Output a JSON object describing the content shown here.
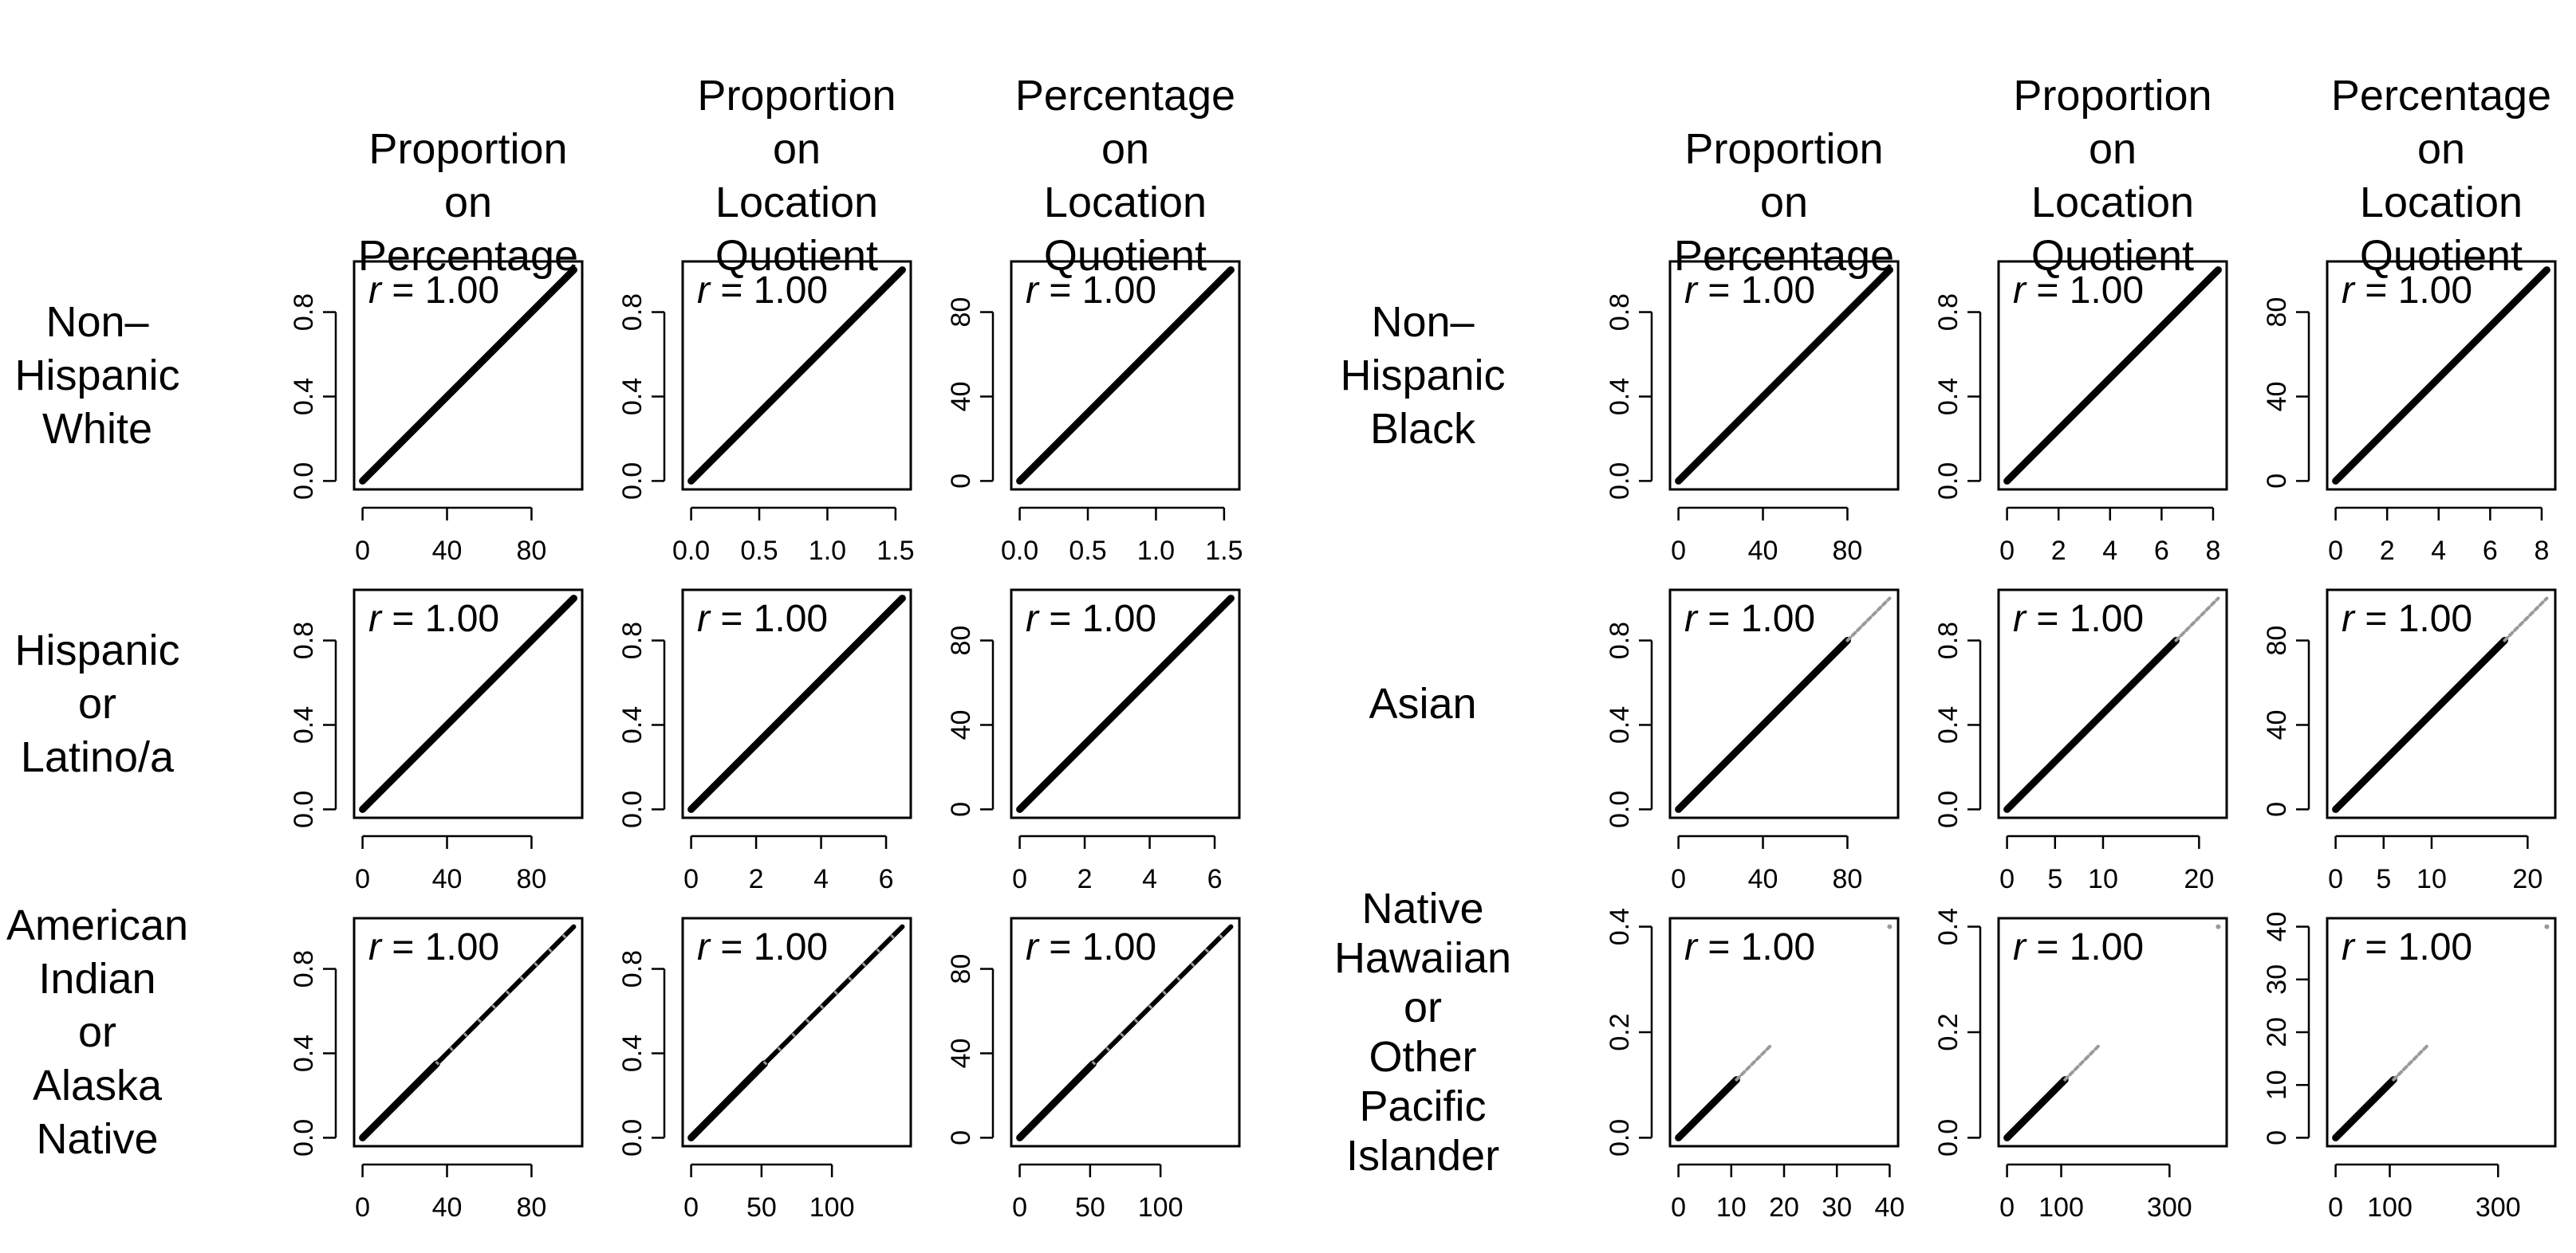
{
  "figure": {
    "panel_groups": [
      {
        "column_titles": [
          [
            "Proportion",
            "on",
            "Percentage"
          ],
          [
            "Proportion",
            "on",
            "Location",
            "Quotient"
          ],
          [
            "Percentage",
            "on",
            "Location",
            "Quotient"
          ]
        ],
        "rows": [
          {
            "label": [
              "Non–",
              "Hispanic",
              "White"
            ]
          },
          {
            "label": [
              "Hispanic",
              "or",
              "Latino/a"
            ]
          },
          {
            "label": [
              "American",
              "Indian",
              "or",
              "Alaska",
              "Native"
            ]
          }
        ]
      },
      {
        "column_titles": [
          [
            "Proportion",
            "on",
            "Percentage"
          ],
          [
            "Proportion",
            "on",
            "Location",
            "Quotient"
          ],
          [
            "Percentage",
            "on",
            "Location",
            "Quotient"
          ]
        ],
        "rows": [
          {
            "label": [
              "Non–",
              "Hispanic",
              "Black"
            ]
          },
          {
            "label": [
              "Asian"
            ]
          },
          {
            "label": [
              "Native",
              "Hawaiian",
              "or",
              "Other",
              "Pacific",
              "Islander"
            ]
          }
        ]
      }
    ]
  },
  "colors": {
    "line": "#000000",
    "sparse_points": "#9a9a9a",
    "background": "#ffffff"
  },
  "chart_data": [
    {
      "type": "scatter",
      "group": 0,
      "row": 0,
      "col": 0,
      "annotation": "r = 1.00",
      "r_value": "1.00",
      "xlim": [
        0,
        100
      ],
      "ylim": [
        0,
        1
      ],
      "xticks": [
        0,
        40,
        80
      ],
      "xticklabels": [
        "0",
        "40",
        "80"
      ],
      "yticks": [
        0,
        0.4,
        0.8
      ],
      "yticklabels": [
        "0.0",
        "0.4",
        "0.8"
      ],
      "dense_segment": {
        "x": [
          0,
          100
        ],
        "y": [
          0,
          1
        ]
      },
      "sparse_segment": null
    },
    {
      "type": "scatter",
      "group": 0,
      "row": 0,
      "col": 1,
      "annotation": "r = 1.00",
      "r_value": "1.00",
      "xlim": [
        0,
        1.55
      ],
      "ylim": [
        0,
        1
      ],
      "xticks": [
        0,
        0.5,
        1.0,
        1.5
      ],
      "xticklabels": [
        "0.0",
        "0.5",
        "1.0",
        "1.5"
      ],
      "yticks": [
        0,
        0.4,
        0.8
      ],
      "yticklabels": [
        "0.0",
        "0.4",
        "0.8"
      ],
      "dense_segment": {
        "x": [
          0,
          1.55
        ],
        "y": [
          0,
          1
        ]
      },
      "sparse_segment": null
    },
    {
      "type": "scatter",
      "group": 0,
      "row": 0,
      "col": 2,
      "annotation": "r = 1.00",
      "r_value": "1.00",
      "xlim": [
        0,
        1.55
      ],
      "ylim": [
        0,
        100
      ],
      "xticks": [
        0,
        0.5,
        1.0,
        1.5
      ],
      "xticklabels": [
        "0.0",
        "0.5",
        "1.0",
        "1.5"
      ],
      "yticks": [
        0,
        40,
        80
      ],
      "yticklabels": [
        "0",
        "40",
        "80"
      ],
      "dense_segment": {
        "x": [
          0,
          1.55
        ],
        "y": [
          0,
          100
        ]
      },
      "sparse_segment": null
    },
    {
      "type": "scatter",
      "group": 0,
      "row": 1,
      "col": 0,
      "annotation": "r = 1.00",
      "r_value": "1.00",
      "xlim": [
        0,
        100
      ],
      "ylim": [
        0,
        1
      ],
      "xticks": [
        0,
        40,
        80
      ],
      "xticklabels": [
        "0",
        "40",
        "80"
      ],
      "yticks": [
        0,
        0.4,
        0.8
      ],
      "yticklabels": [
        "0.0",
        "0.4",
        "0.8"
      ],
      "dense_segment": {
        "x": [
          0,
          100
        ],
        "y": [
          0,
          1
        ]
      },
      "sparse_segment": null
    },
    {
      "type": "scatter",
      "group": 0,
      "row": 1,
      "col": 1,
      "annotation": "r = 1.00",
      "r_value": "1.00",
      "xlim": [
        0,
        6.5
      ],
      "ylim": [
        0,
        1
      ],
      "xticks": [
        0,
        2,
        4,
        6
      ],
      "xticklabels": [
        "0",
        "2",
        "4",
        "6"
      ],
      "yticks": [
        0,
        0.4,
        0.8
      ],
      "yticklabels": [
        "0.0",
        "0.4",
        "0.8"
      ],
      "dense_segment": {
        "x": [
          0,
          6.5
        ],
        "y": [
          0,
          1
        ]
      },
      "sparse_segment": null
    },
    {
      "type": "scatter",
      "group": 0,
      "row": 1,
      "col": 2,
      "annotation": "r = 1.00",
      "r_value": "1.00",
      "xlim": [
        0,
        6.5
      ],
      "ylim": [
        0,
        100
      ],
      "xticks": [
        0,
        2,
        4,
        6
      ],
      "xticklabels": [
        "0",
        "2",
        "4",
        "6"
      ],
      "yticks": [
        0,
        40,
        80
      ],
      "yticklabels": [
        "0",
        "40",
        "80"
      ],
      "dense_segment": {
        "x": [
          0,
          6.5
        ],
        "y": [
          0,
          100
        ]
      },
      "sparse_segment": null
    },
    {
      "type": "scatter",
      "group": 0,
      "row": 2,
      "col": 0,
      "annotation": "r = 1.00",
      "r_value": "1.00",
      "xlim": [
        0,
        100
      ],
      "ylim": [
        0,
        1
      ],
      "xticks": [
        0,
        40,
        80
      ],
      "xticklabels": [
        "0",
        "40",
        "80"
      ],
      "yticks": [
        0,
        0.4,
        0.8
      ],
      "yticklabels": [
        "0.0",
        "0.4",
        "0.8"
      ],
      "dense_segment": {
        "x": [
          0,
          35
        ],
        "y": [
          0,
          0.35
        ]
      },
      "sparse_segment": {
        "x": [
          35,
          100
        ],
        "y": [
          0.35,
          1
        ],
        "mixed": true
      }
    },
    {
      "type": "scatter",
      "group": 0,
      "row": 2,
      "col": 1,
      "annotation": "r = 1.00",
      "r_value": "1.00",
      "xlim": [
        0,
        150
      ],
      "ylim": [
        0,
        1
      ],
      "xticks": [
        0,
        50,
        100
      ],
      "xticklabels": [
        "0",
        "50",
        "100"
      ],
      "yticks": [
        0,
        0.4,
        0.8
      ],
      "yticklabels": [
        "0.0",
        "0.4",
        "0.8"
      ],
      "dense_segment": {
        "x": [
          0,
          52
        ],
        "y": [
          0,
          0.35
        ]
      },
      "sparse_segment": {
        "x": [
          52,
          150
        ],
        "y": [
          0.35,
          1
        ],
        "mixed": true
      }
    },
    {
      "type": "scatter",
      "group": 0,
      "row": 2,
      "col": 2,
      "annotation": "r = 1.00",
      "r_value": "1.00",
      "xlim": [
        0,
        150
      ],
      "ylim": [
        0,
        100
      ],
      "xticks": [
        0,
        50,
        100
      ],
      "xticklabels": [
        "0",
        "50",
        "100"
      ],
      "yticks": [
        0,
        40,
        80
      ],
      "yticklabels": [
        "0",
        "40",
        "80"
      ],
      "dense_segment": {
        "x": [
          0,
          52
        ],
        "y": [
          0,
          35
        ]
      },
      "sparse_segment": {
        "x": [
          52,
          150
        ],
        "y": [
          35,
          100
        ],
        "mixed": true
      }
    },
    {
      "type": "scatter",
      "group": 1,
      "row": 0,
      "col": 0,
      "annotation": "r = 1.00",
      "r_value": "1.00",
      "xlim": [
        0,
        100
      ],
      "ylim": [
        0,
        1
      ],
      "xticks": [
        0,
        40,
        80
      ],
      "xticklabels": [
        "0",
        "40",
        "80"
      ],
      "yticks": [
        0,
        0.4,
        0.8
      ],
      "yticklabels": [
        "0.0",
        "0.4",
        "0.8"
      ],
      "dense_segment": {
        "x": [
          0,
          100
        ],
        "y": [
          0,
          1
        ]
      },
      "sparse_segment": null
    },
    {
      "type": "scatter",
      "group": 1,
      "row": 0,
      "col": 1,
      "annotation": "r = 1.00",
      "r_value": "1.00",
      "xlim": [
        0,
        8.2
      ],
      "ylim": [
        0,
        1
      ],
      "xticks": [
        0,
        2,
        4,
        6,
        8
      ],
      "xticklabels": [
        "0",
        "2",
        "4",
        "6",
        "8"
      ],
      "yticks": [
        0,
        0.4,
        0.8
      ],
      "yticklabels": [
        "0.0",
        "0.4",
        "0.8"
      ],
      "dense_segment": {
        "x": [
          0,
          8.2
        ],
        "y": [
          0,
          1
        ]
      },
      "sparse_segment": null
    },
    {
      "type": "scatter",
      "group": 1,
      "row": 0,
      "col": 2,
      "annotation": "r = 1.00",
      "r_value": "1.00",
      "xlim": [
        0,
        8.2
      ],
      "ylim": [
        0,
        100
      ],
      "xticks": [
        0,
        2,
        4,
        6,
        8
      ],
      "xticklabels": [
        "0",
        "2",
        "4",
        "6",
        "8"
      ],
      "yticks": [
        0,
        40,
        80
      ],
      "yticklabels": [
        "0",
        "40",
        "80"
      ],
      "dense_segment": {
        "x": [
          0,
          8.2
        ],
        "y": [
          0,
          100
        ]
      },
      "sparse_segment": null
    },
    {
      "type": "scatter",
      "group": 1,
      "row": 1,
      "col": 0,
      "annotation": "r = 1.00",
      "r_value": "1.00",
      "xlim": [
        0,
        100
      ],
      "ylim": [
        0,
        1
      ],
      "xticks": [
        0,
        40,
        80
      ],
      "xticklabels": [
        "0",
        "40",
        "80"
      ],
      "yticks": [
        0,
        0.4,
        0.8
      ],
      "yticklabels": [
        "0.0",
        "0.4",
        "0.8"
      ],
      "dense_segment": {
        "x": [
          0,
          80
        ],
        "y": [
          0,
          0.8
        ]
      },
      "sparse_segment": {
        "x": [
          80,
          100
        ],
        "y": [
          0.8,
          1
        ],
        "mixed": false
      }
    },
    {
      "type": "scatter",
      "group": 1,
      "row": 1,
      "col": 1,
      "annotation": "r = 1.00",
      "r_value": "1.00",
      "xlim": [
        0,
        22
      ],
      "ylim": [
        0,
        1
      ],
      "xticks": [
        0,
        5,
        10,
        20
      ],
      "xticklabels": [
        "0",
        "5",
        "10",
        "20"
      ],
      "yticks": [
        0,
        0.4,
        0.8
      ],
      "yticklabels": [
        "0.0",
        "0.4",
        "0.8"
      ],
      "dense_segment": {
        "x": [
          0,
          17.6
        ],
        "y": [
          0,
          0.8
        ]
      },
      "sparse_segment": {
        "x": [
          17.6,
          22
        ],
        "y": [
          0.8,
          1
        ],
        "mixed": false
      }
    },
    {
      "type": "scatter",
      "group": 1,
      "row": 1,
      "col": 2,
      "annotation": "r = 1.00",
      "r_value": "1.00",
      "xlim": [
        0,
        22
      ],
      "ylim": [
        0,
        100
      ],
      "xticks": [
        0,
        5,
        10,
        20
      ],
      "xticklabels": [
        "0",
        "5",
        "10",
        "20"
      ],
      "yticks": [
        0,
        40,
        80
      ],
      "yticklabels": [
        "0",
        "40",
        "80"
      ],
      "dense_segment": {
        "x": [
          0,
          17.6
        ],
        "y": [
          0,
          80
        ]
      },
      "sparse_segment": {
        "x": [
          17.6,
          22
        ],
        "y": [
          80,
          100
        ],
        "mixed": false
      }
    },
    {
      "type": "scatter",
      "group": 1,
      "row": 2,
      "col": 0,
      "annotation": "r = 1.00",
      "r_value": "1.00",
      "xlim": [
        0,
        40
      ],
      "ylim": [
        0,
        0.4
      ],
      "xticks": [
        0,
        10,
        20,
        30,
        40
      ],
      "xticklabels": [
        "0",
        "10",
        "20",
        "30",
        "40"
      ],
      "yticks": [
        0,
        0.2,
        0.4
      ],
      "yticklabels": [
        "0.0",
        "0.2",
        "0.4"
      ],
      "dense_segment": {
        "x": [
          0,
          11
        ],
        "y": [
          0,
          0.11
        ]
      },
      "sparse_segment": {
        "x": [
          11,
          17.5
        ],
        "y": [
          0.11,
          0.175
        ],
        "mixed": false
      },
      "outliers": [
        {
          "x": 40,
          "y": 0.4
        }
      ]
    },
    {
      "type": "scatter",
      "group": 1,
      "row": 2,
      "col": 1,
      "annotation": "r = 1.00",
      "r_value": "1.00",
      "xlim": [
        0,
        390
      ],
      "ylim": [
        0,
        0.4
      ],
      "xticks": [
        0,
        100,
        300
      ],
      "xticklabels": [
        "0",
        "100",
        "300"
      ],
      "yticks": [
        0,
        0.2,
        0.4
      ],
      "yticklabels": [
        "0.0",
        "0.2",
        "0.4"
      ],
      "dense_segment": {
        "x": [
          0,
          107
        ],
        "y": [
          0,
          0.11
        ]
      },
      "sparse_segment": {
        "x": [
          107,
          170
        ],
        "y": [
          0.11,
          0.175
        ],
        "mixed": false
      },
      "outliers": [
        {
          "x": 390,
          "y": 0.4
        }
      ]
    },
    {
      "type": "scatter",
      "group": 1,
      "row": 2,
      "col": 2,
      "annotation": "r = 1.00",
      "r_value": "1.00",
      "xlim": [
        0,
        390
      ],
      "ylim": [
        0,
        40
      ],
      "xticks": [
        0,
        100,
        300
      ],
      "xticklabels": [
        "0",
        "100",
        "300"
      ],
      "yticks": [
        0,
        10,
        20,
        30,
        40
      ],
      "yticklabels": [
        "0",
        "10",
        "20",
        "30",
        "40"
      ],
      "dense_segment": {
        "x": [
          0,
          107
        ],
        "y": [
          0,
          11
        ]
      },
      "sparse_segment": {
        "x": [
          107,
          170
        ],
        "y": [
          11,
          17.5
        ],
        "mixed": false
      },
      "outliers": [
        {
          "x": 390,
          "y": 40
        }
      ]
    }
  ]
}
